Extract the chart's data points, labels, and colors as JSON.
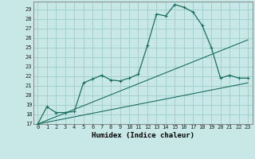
{
  "xlabel": "Humidex (Indice chaleur)",
  "bg_color": "#c8e8e8",
  "grid_color": "#a0cccc",
  "line_color": "#1a6e60",
  "xlim": [
    -0.5,
    23.5
  ],
  "ylim": [
    17,
    29.8
  ],
  "yticks": [
    17,
    18,
    19,
    20,
    21,
    22,
    23,
    24,
    25,
    26,
    27,
    28,
    29
  ],
  "xticks": [
    0,
    1,
    2,
    3,
    4,
    5,
    6,
    7,
    8,
    9,
    10,
    11,
    12,
    13,
    14,
    15,
    16,
    17,
    18,
    19,
    20,
    21,
    22,
    23
  ],
  "main_line": [
    [
      0,
      17.0
    ],
    [
      1,
      18.8
    ],
    [
      2,
      18.2
    ],
    [
      3,
      18.2
    ],
    [
      4,
      18.3
    ],
    [
      5,
      21.3
    ],
    [
      6,
      21.7
    ],
    [
      7,
      22.1
    ],
    [
      8,
      21.6
    ],
    [
      9,
      21.5
    ],
    [
      10,
      21.8
    ],
    [
      11,
      22.2
    ],
    [
      12,
      25.2
    ],
    [
      13,
      28.5
    ],
    [
      14,
      28.3
    ],
    [
      15,
      29.5
    ],
    [
      16,
      29.2
    ],
    [
      17,
      28.7
    ],
    [
      18,
      27.3
    ],
    [
      19,
      25.0
    ],
    [
      20,
      21.8
    ],
    [
      21,
      22.1
    ],
    [
      22,
      21.8
    ],
    [
      23,
      21.8
    ]
  ],
  "line_upper": [
    [
      0,
      17.0
    ],
    [
      23,
      25.8
    ]
  ],
  "line_lower": [
    [
      0,
      17.0
    ],
    [
      23,
      21.3
    ]
  ]
}
